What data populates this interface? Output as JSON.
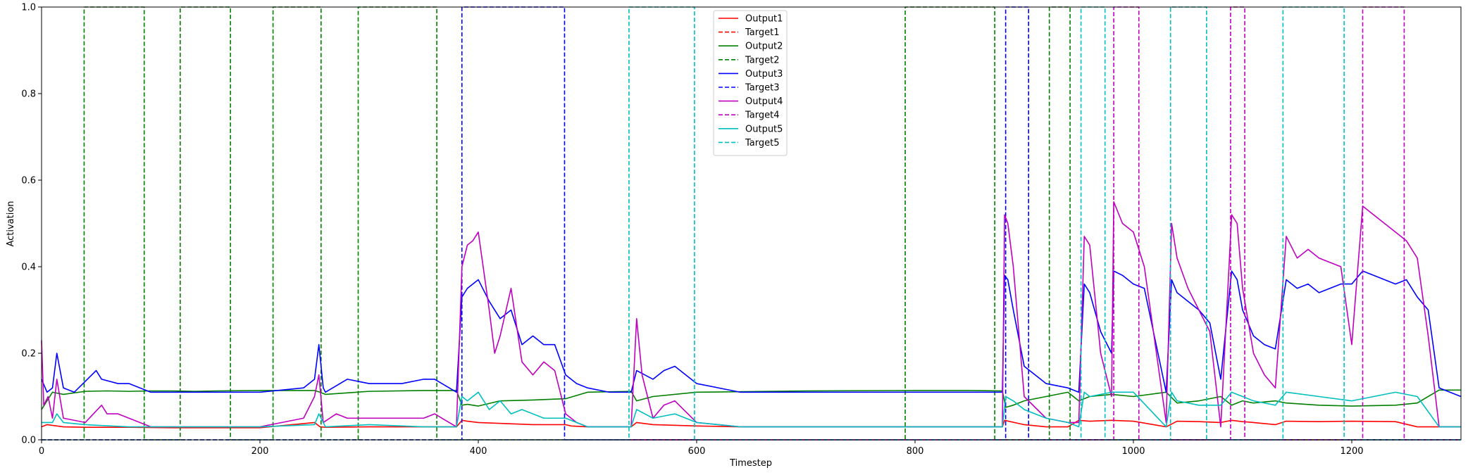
{
  "chart_data": {
    "type": "line",
    "title": "",
    "xlabel": "Timestep",
    "ylabel": "Activation",
    "xlim": [
      0,
      1300
    ],
    "ylim": [
      0,
      1.0
    ],
    "xticks": [
      0,
      200,
      400,
      600,
      800,
      1000,
      1200
    ],
    "yticks": [
      0.0,
      0.2,
      0.4,
      0.6,
      0.8,
      1.0
    ],
    "xtick_labels": [
      "0",
      "200",
      "400",
      "600",
      "800",
      "1000",
      "1200"
    ],
    "ytick_labels": [
      "0.0",
      "0.2",
      "0.4",
      "0.6",
      "0.8",
      "1.0"
    ],
    "grid": false,
    "legend_position": "top-center",
    "series": [
      {
        "name": "Output1",
        "color": "#ff0000",
        "dash": "solid",
        "x": [
          0,
          5,
          20,
          40,
          80,
          120,
          160,
          200,
          250,
          255,
          260,
          300,
          350,
          380,
          385,
          390,
          400,
          450,
          480,
          485,
          500,
          540,
          545,
          560,
          600,
          640,
          700,
          760,
          800,
          850,
          880,
          882,
          900,
          920,
          940,
          950,
          960,
          980,
          1000,
          1030,
          1040,
          1060,
          1080,
          1090,
          1100,
          1110,
          1130,
          1140,
          1170,
          1200,
          1240,
          1260,
          1280,
          1300
        ],
        "y": [
          0.03,
          0.035,
          0.03,
          0.029,
          0.029,
          0.028,
          0.028,
          0.028,
          0.04,
          0.03,
          0.029,
          0.03,
          0.03,
          0.03,
          0.045,
          0.043,
          0.04,
          0.035,
          0.035,
          0.032,
          0.03,
          0.03,
          0.04,
          0.035,
          0.032,
          0.03,
          0.03,
          0.03,
          0.03,
          0.03,
          0.03,
          0.045,
          0.035,
          0.03,
          0.03,
          0.045,
          0.043,
          0.045,
          0.043,
          0.03,
          0.043,
          0.042,
          0.04,
          0.045,
          0.042,
          0.04,
          0.035,
          0.043,
          0.042,
          0.043,
          0.042,
          0.03,
          0.03,
          0.03
        ]
      },
      {
        "name": "Target1",
        "color": "#ff0000",
        "dash": "dashed",
        "x": [
          0,
          1300
        ],
        "y": [
          0,
          0
        ]
      },
      {
        "name": "Output2",
        "color": "#008000",
        "dash": "solid",
        "x": [
          0,
          10,
          20,
          40,
          60,
          80,
          100,
          120,
          140,
          160,
          200,
          250,
          255,
          260,
          300,
          350,
          380,
          385,
          390,
          400,
          420,
          450,
          480,
          500,
          540,
          545,
          560,
          600,
          700,
          800,
          850,
          880,
          883,
          890,
          900,
          920,
          940,
          950,
          960,
          980,
          1000,
          1030,
          1040,
          1060,
          1080,
          1090,
          1100,
          1110,
          1130,
          1140,
          1170,
          1200,
          1240,
          1260,
          1280,
          1300
        ],
        "y": [
          0.07,
          0.11,
          0.105,
          0.112,
          0.113,
          0.112,
          0.113,
          0.113,
          0.112,
          0.113,
          0.114,
          0.114,
          0.11,
          0.105,
          0.112,
          0.114,
          0.114,
          0.08,
          0.082,
          0.078,
          0.09,
          0.092,
          0.095,
          0.11,
          0.112,
          0.09,
          0.1,
          0.11,
          0.113,
          0.114,
          0.114,
          0.113,
          0.075,
          0.08,
          0.09,
          0.1,
          0.11,
          0.09,
          0.1,
          0.105,
          0.1,
          0.11,
          0.085,
          0.09,
          0.1,
          0.08,
          0.09,
          0.085,
          0.09,
          0.085,
          0.08,
          0.078,
          0.08,
          0.085,
          0.115,
          0.115
        ]
      },
      {
        "name": "Target2",
        "color": "#008000",
        "dash": "dashed",
        "x": [
          0,
          39,
          39,
          94,
          94,
          127,
          127,
          173,
          173,
          212,
          212,
          256,
          256,
          290,
          290,
          362,
          362,
          791,
          791,
          873,
          873,
          923,
          923,
          942,
          942,
          1300
        ],
        "y": [
          0,
          0,
          1,
          1,
          0,
          0,
          1,
          1,
          0,
          0,
          1,
          1,
          0,
          0,
          1,
          1,
          0,
          0,
          1,
          1,
          0,
          0,
          1,
          1,
          0,
          0
        ]
      },
      {
        "name": "Output3",
        "color": "#0000ff",
        "dash": "solid",
        "x": [
          0,
          5,
          10,
          14,
          20,
          30,
          50,
          55,
          70,
          80,
          100,
          120,
          140,
          160,
          200,
          240,
          250,
          254,
          258,
          260,
          280,
          300,
          330,
          350,
          360,
          380,
          385,
          390,
          395,
          400,
          410,
          420,
          430,
          440,
          450,
          460,
          470,
          480,
          490,
          500,
          520,
          540,
          545,
          560,
          570,
          580,
          600,
          640,
          700,
          750,
          800,
          850,
          880,
          882,
          885,
          890,
          900,
          920,
          940,
          950,
          955,
          960,
          970,
          980,
          982,
          990,
          1000,
          1010,
          1030,
          1035,
          1040,
          1050,
          1060,
          1070,
          1080,
          1090,
          1095,
          1100,
          1110,
          1120,
          1130,
          1140,
          1150,
          1160,
          1170,
          1180,
          1190,
          1200,
          1210,
          1220,
          1240,
          1250,
          1260,
          1270,
          1280,
          1300
        ],
        "y": [
          0.14,
          0.11,
          0.12,
          0.2,
          0.12,
          0.11,
          0.16,
          0.14,
          0.13,
          0.13,
          0.11,
          0.11,
          0.11,
          0.11,
          0.11,
          0.12,
          0.14,
          0.22,
          0.12,
          0.11,
          0.14,
          0.13,
          0.13,
          0.14,
          0.14,
          0.11,
          0.33,
          0.35,
          0.36,
          0.37,
          0.32,
          0.28,
          0.3,
          0.22,
          0.24,
          0.22,
          0.22,
          0.15,
          0.13,
          0.12,
          0.11,
          0.11,
          0.16,
          0.14,
          0.16,
          0.17,
          0.13,
          0.11,
          0.11,
          0.11,
          0.11,
          0.11,
          0.11,
          0.38,
          0.37,
          0.3,
          0.17,
          0.13,
          0.12,
          0.11,
          0.36,
          0.34,
          0.25,
          0.2,
          0.39,
          0.38,
          0.36,
          0.35,
          0.11,
          0.37,
          0.34,
          0.32,
          0.3,
          0.27,
          0.14,
          0.39,
          0.37,
          0.3,
          0.24,
          0.22,
          0.21,
          0.37,
          0.35,
          0.36,
          0.34,
          0.35,
          0.36,
          0.36,
          0.39,
          0.38,
          0.36,
          0.37,
          0.33,
          0.3,
          0.12,
          0.1
        ]
      },
      {
        "name": "Target3",
        "color": "#0000ff",
        "dash": "dashed",
        "x": [
          0,
          385,
          385,
          479,
          479,
          883,
          883,
          904,
          904,
          1300
        ],
        "y": [
          0,
          0,
          1,
          1,
          0,
          0,
          1,
          1,
          0,
          0
        ]
      },
      {
        "name": "Output4",
        "color": "#bf00bf",
        "dash": "solid",
        "x": [
          0,
          2,
          6,
          10,
          14,
          20,
          40,
          55,
          60,
          70,
          80,
          100,
          150,
          200,
          240,
          250,
          254,
          258,
          270,
          280,
          300,
          350,
          360,
          380,
          385,
          390,
          395,
          400,
          410,
          415,
          420,
          430,
          440,
          450,
          460,
          470,
          480,
          490,
          500,
          540,
          545,
          550,
          560,
          570,
          580,
          600,
          640,
          700,
          800,
          850,
          880,
          882,
          885,
          890,
          900,
          920,
          940,
          950,
          955,
          960,
          970,
          980,
          982,
          990,
          1000,
          1010,
          1030,
          1035,
          1040,
          1050,
          1060,
          1070,
          1080,
          1090,
          1095,
          1100,
          1110,
          1120,
          1130,
          1140,
          1150,
          1160,
          1170,
          1180,
          1190,
          1200,
          1210,
          1220,
          1240,
          1250,
          1260,
          1270,
          1280,
          1300
        ],
        "y": [
          0.23,
          0.08,
          0.1,
          0.05,
          0.14,
          0.05,
          0.04,
          0.08,
          0.06,
          0.06,
          0.05,
          0.03,
          0.03,
          0.03,
          0.05,
          0.1,
          0.15,
          0.04,
          0.06,
          0.05,
          0.05,
          0.05,
          0.06,
          0.03,
          0.4,
          0.45,
          0.46,
          0.48,
          0.3,
          0.2,
          0.24,
          0.35,
          0.18,
          0.15,
          0.18,
          0.16,
          0.06,
          0.04,
          0.03,
          0.03,
          0.28,
          0.15,
          0.05,
          0.08,
          0.09,
          0.04,
          0.03,
          0.03,
          0.03,
          0.03,
          0.03,
          0.52,
          0.5,
          0.4,
          0.1,
          0.05,
          0.04,
          0.04,
          0.47,
          0.45,
          0.2,
          0.1,
          0.55,
          0.5,
          0.48,
          0.4,
          0.04,
          0.5,
          0.42,
          0.35,
          0.3,
          0.25,
          0.03,
          0.52,
          0.5,
          0.35,
          0.2,
          0.15,
          0.12,
          0.47,
          0.42,
          0.44,
          0.42,
          0.41,
          0.4,
          0.22,
          0.54,
          0.52,
          0.48,
          0.46,
          0.42,
          0.24,
          0.03,
          0.03
        ]
      },
      {
        "name": "Target4",
        "color": "#bf00bf",
        "dash": "dashed",
        "x": [
          0,
          982,
          982,
          1005,
          1005,
          1089,
          1089,
          1102,
          1102,
          1210,
          1210,
          1248,
          1248,
          1300
        ],
        "y": [
          0,
          0,
          1,
          1,
          0,
          0,
          1,
          1,
          0,
          0,
          1,
          1,
          0,
          0
        ]
      },
      {
        "name": "Output5",
        "color": "#00bfbf",
        "dash": "solid",
        "x": [
          0,
          10,
          14,
          20,
          40,
          80,
          100,
          200,
          250,
          254,
          260,
          300,
          350,
          380,
          385,
          390,
          400,
          410,
          420,
          430,
          440,
          460,
          480,
          500,
          540,
          545,
          560,
          580,
          600,
          640,
          700,
          800,
          850,
          880,
          883,
          890,
          900,
          920,
          940,
          950,
          955,
          960,
          980,
          1000,
          1030,
          1035,
          1040,
          1060,
          1080,
          1090,
          1100,
          1110,
          1130,
          1140,
          1170,
          1200,
          1240,
          1260,
          1280,
          1300
        ],
        "y": [
          0.04,
          0.04,
          0.06,
          0.04,
          0.035,
          0.03,
          0.03,
          0.03,
          0.035,
          0.06,
          0.03,
          0.035,
          0.03,
          0.03,
          0.1,
          0.09,
          0.11,
          0.07,
          0.09,
          0.06,
          0.07,
          0.05,
          0.05,
          0.03,
          0.03,
          0.07,
          0.05,
          0.06,
          0.04,
          0.03,
          0.03,
          0.03,
          0.03,
          0.03,
          0.1,
          0.09,
          0.07,
          0.05,
          0.04,
          0.03,
          0.11,
          0.1,
          0.11,
          0.11,
          0.03,
          0.11,
          0.09,
          0.08,
          0.08,
          0.11,
          0.1,
          0.09,
          0.08,
          0.11,
          0.1,
          0.09,
          0.11,
          0.1,
          0.03,
          0.03
        ]
      },
      {
        "name": "Target5",
        "color": "#00bfbf",
        "dash": "dashed",
        "x": [
          0,
          538,
          538,
          598,
          598,
          952,
          952,
          974,
          974,
          1034,
          1034,
          1067,
          1067,
          1137,
          1137,
          1193,
          1193,
          1300
        ],
        "y": [
          0,
          0,
          1,
          1,
          0,
          0,
          1,
          1,
          0,
          0,
          1,
          1,
          0,
          0,
          1,
          1,
          0,
          0
        ]
      }
    ]
  }
}
